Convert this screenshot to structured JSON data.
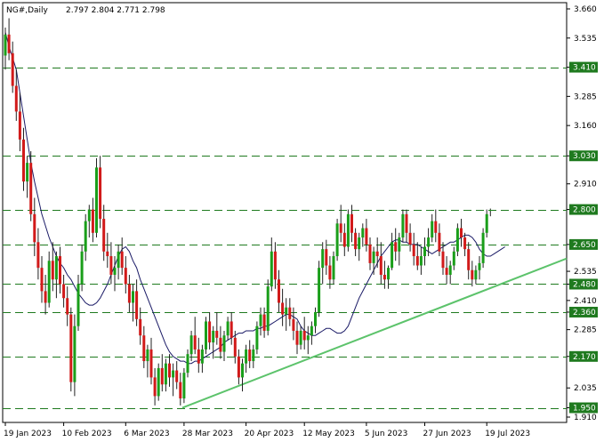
{
  "header": {
    "symbol": "NG#,Daily",
    "ohlc": "2.797 2.804 2.771 2.798"
  },
  "colors": {
    "bull": "#1a9e1a",
    "bear": "#d11a1a",
    "wick": "#222222",
    "level_line": "#1f7a1f",
    "level_box": "#1f7a1f",
    "trendline": "#5cc36b",
    "ma": "#1a1a66",
    "grid": "#000000"
  },
  "chart_data": {
    "type": "candlestick",
    "title": "",
    "symbol": "NG#",
    "timeframe": "Daily",
    "last_ohlc": [
      2.797,
      2.804,
      2.771,
      2.798
    ],
    "ylim": [
      1.91,
      3.66
    ],
    "y_ticks": [
      "3.660",
      "3.535",
      "3.410",
      "3.285",
      "3.160",
      "3.030",
      "2.910",
      "2.800",
      "2.650",
      "2.535",
      "2.480",
      "2.410",
      "2.360",
      "2.285",
      "2.170",
      "2.035",
      "1.950",
      "1.910"
    ],
    "x_ticks": [
      "19 Jan 2023",
      "10 Feb 2023",
      "6 Mar 2023",
      "28 Mar 2023",
      "20 Apr 2023",
      "12 May 2023",
      "5 Jun 2023",
      "27 Jun 2023",
      "19 Jul 2023"
    ],
    "x_tick_index": [
      0,
      16,
      33,
      49,
      66,
      82,
      99,
      115,
      132
    ],
    "levels": [
      3.41,
      3.03,
      2.8,
      2.65,
      2.48,
      2.36,
      2.17,
      1.95
    ],
    "level_labels": [
      "3.410",
      "3.030",
      "2.800",
      "2.650",
      "2.480",
      "2.360",
      "2.170",
      "1.950"
    ],
    "trendline": {
      "from": [
        "28 Mar 2023",
        1.95
      ],
      "to": [
        "end",
        2.59
      ]
    },
    "ma_values": [
      3.56,
      3.5,
      3.45,
      3.4,
      3.3,
      3.2,
      3.1,
      3.0,
      2.92,
      2.85,
      2.78,
      2.73,
      2.68,
      2.64,
      2.6,
      2.57,
      2.55,
      2.52,
      2.5,
      2.47,
      2.44,
      2.42,
      2.4,
      2.39,
      2.39,
      2.4,
      2.42,
      2.45,
      2.48,
      2.52,
      2.56,
      2.6,
      2.63,
      2.64,
      2.62,
      2.58,
      2.55,
      2.5,
      2.46,
      2.42,
      2.38,
      2.34,
      2.3,
      2.26,
      2.22,
      2.19,
      2.17,
      2.16,
      2.15,
      2.15,
      2.14,
      2.14,
      2.15,
      2.15,
      2.16,
      2.17,
      2.18,
      2.19,
      2.2,
      2.21,
      2.23,
      2.24,
      2.25,
      2.26,
      2.27,
      2.27,
      2.28,
      2.28,
      2.28,
      2.29,
      2.29,
      2.3,
      2.3,
      2.31,
      2.32,
      2.33,
      2.34,
      2.35,
      2.35,
      2.34,
      2.33,
      2.3,
      2.28,
      2.27,
      2.26,
      2.26,
      2.27,
      2.28,
      2.29,
      2.29,
      2.28,
      2.27,
      2.27,
      2.28,
      2.3,
      2.34,
      2.38,
      2.42,
      2.45,
      2.48,
      2.51,
      2.54,
      2.57,
      2.6,
      2.62,
      2.64,
      2.66,
      2.67,
      2.67,
      2.66,
      2.66,
      2.65,
      2.65,
      2.65,
      2.64,
      2.63,
      2.62,
      2.61,
      2.62,
      2.63,
      2.64,
      2.65,
      2.66,
      2.66,
      2.67,
      2.68,
      2.69,
      2.69,
      2.68,
      2.66,
      2.63,
      2.61,
      2.6,
      2.6,
      2.61,
      2.62,
      2.63,
      2.64
    ],
    "ohlc": [
      [
        3.46,
        3.58,
        3.4,
        3.55
      ],
      [
        3.55,
        3.62,
        3.44,
        3.47
      ],
      [
        3.47,
        3.52,
        3.3,
        3.33
      ],
      [
        3.33,
        3.4,
        3.18,
        3.22
      ],
      [
        3.22,
        3.3,
        3.05,
        3.1
      ],
      [
        3.1,
        3.15,
        2.88,
        2.92
      ],
      [
        2.92,
        3.03,
        2.85,
        3.0
      ],
      [
        3.0,
        3.05,
        2.75,
        2.78
      ],
      [
        2.78,
        2.85,
        2.6,
        2.66
      ],
      [
        2.66,
        2.72,
        2.5,
        2.55
      ],
      [
        2.55,
        2.6,
        2.4,
        2.45
      ],
      [
        2.45,
        2.52,
        2.35,
        2.4
      ],
      [
        2.4,
        2.62,
        2.38,
        2.58
      ],
      [
        2.58,
        2.66,
        2.45,
        2.5
      ],
      [
        2.5,
        2.62,
        2.42,
        2.6
      ],
      [
        2.6,
        2.64,
        2.44,
        2.48
      ],
      [
        2.48,
        2.52,
        2.38,
        2.42
      ],
      [
        2.42,
        2.47,
        2.3,
        2.35
      ],
      [
        2.35,
        2.38,
        2.02,
        2.06
      ],
      [
        2.06,
        2.35,
        2.0,
        2.3
      ],
      [
        2.3,
        2.52,
        2.28,
        2.48
      ],
      [
        2.48,
        2.65,
        2.45,
        2.62
      ],
      [
        2.62,
        2.78,
        2.58,
        2.75
      ],
      [
        2.75,
        2.82,
        2.68,
        2.8
      ],
      [
        2.8,
        2.85,
        2.66,
        2.7
      ],
      [
        2.7,
        3.02,
        2.68,
        2.98
      ],
      [
        2.98,
        3.03,
        2.72,
        2.76
      ],
      [
        2.76,
        2.82,
        2.58,
        2.62
      ],
      [
        2.62,
        2.7,
        2.55,
        2.6
      ],
      [
        2.6,
        2.66,
        2.48,
        2.52
      ],
      [
        2.52,
        2.6,
        2.45,
        2.55
      ],
      [
        2.55,
        2.65,
        2.5,
        2.62
      ],
      [
        2.62,
        2.68,
        2.52,
        2.55
      ],
      [
        2.55,
        2.6,
        2.44,
        2.48
      ],
      [
        2.48,
        2.52,
        2.36,
        2.4
      ],
      [
        2.4,
        2.48,
        2.32,
        2.45
      ],
      [
        2.45,
        2.5,
        2.3,
        2.33
      ],
      [
        2.33,
        2.38,
        2.22,
        2.26
      ],
      [
        2.26,
        2.3,
        2.12,
        2.15
      ],
      [
        2.15,
        2.22,
        2.08,
        2.2
      ],
      [
        2.2,
        2.25,
        2.05,
        2.08
      ],
      [
        2.08,
        2.12,
        1.96,
        2.0
      ],
      [
        2.0,
        2.14,
        1.98,
        2.12
      ],
      [
        2.12,
        2.18,
        2.02,
        2.05
      ],
      [
        2.05,
        2.16,
        2.02,
        2.14
      ],
      [
        2.14,
        2.18,
        2.04,
        2.08
      ],
      [
        2.08,
        2.14,
        2.0,
        2.11
      ],
      [
        2.11,
        2.15,
        2.03,
        2.06
      ],
      [
        2.06,
        2.1,
        1.96,
        1.99
      ],
      [
        1.99,
        2.12,
        1.97,
        2.1
      ],
      [
        2.1,
        2.2,
        2.08,
        2.18
      ],
      [
        2.18,
        2.28,
        2.15,
        2.26
      ],
      [
        2.26,
        2.34,
        2.18,
        2.2
      ],
      [
        2.2,
        2.25,
        2.1,
        2.14
      ],
      [
        2.14,
        2.22,
        2.1,
        2.2
      ],
      [
        2.2,
        2.34,
        2.18,
        2.32
      ],
      [
        2.32,
        2.36,
        2.2,
        2.23
      ],
      [
        2.23,
        2.3,
        2.16,
        2.28
      ],
      [
        2.28,
        2.36,
        2.22,
        2.25
      ],
      [
        2.25,
        2.3,
        2.16,
        2.19
      ],
      [
        2.19,
        2.28,
        2.15,
        2.26
      ],
      [
        2.26,
        2.34,
        2.24,
        2.32
      ],
      [
        2.32,
        2.36,
        2.22,
        2.25
      ],
      [
        2.25,
        2.28,
        2.14,
        2.17
      ],
      [
        2.17,
        2.2,
        2.05,
        2.08
      ],
      [
        2.08,
        2.16,
        2.02,
        2.14
      ],
      [
        2.14,
        2.22,
        2.1,
        2.2
      ],
      [
        2.2,
        2.24,
        2.12,
        2.15
      ],
      [
        2.15,
        2.22,
        2.12,
        2.2
      ],
      [
        2.2,
        2.32,
        2.18,
        2.3
      ],
      [
        2.3,
        2.38,
        2.26,
        2.35
      ],
      [
        2.35,
        2.38,
        2.25,
        2.28
      ],
      [
        2.28,
        2.5,
        2.26,
        2.47
      ],
      [
        2.47,
        2.68,
        2.45,
        2.62
      ],
      [
        2.62,
        2.66,
        2.46,
        2.5
      ],
      [
        2.5,
        2.54,
        2.36,
        2.4
      ],
      [
        2.4,
        2.46,
        2.3,
        2.35
      ],
      [
        2.35,
        2.42,
        2.28,
        2.38
      ],
      [
        2.38,
        2.42,
        2.3,
        2.33
      ],
      [
        2.33,
        2.38,
        2.24,
        2.28
      ],
      [
        2.28,
        2.32,
        2.18,
        2.22
      ],
      [
        2.22,
        2.3,
        2.2,
        2.28
      ],
      [
        2.28,
        2.34,
        2.2,
        2.24
      ],
      [
        2.24,
        2.3,
        2.18,
        2.26
      ],
      [
        2.26,
        2.32,
        2.22,
        2.3
      ],
      [
        2.3,
        2.38,
        2.27,
        2.36
      ],
      [
        2.36,
        2.58,
        2.34,
        2.55
      ],
      [
        2.55,
        2.66,
        2.48,
        2.63
      ],
      [
        2.63,
        2.67,
        2.52,
        2.56
      ],
      [
        2.56,
        2.6,
        2.46,
        2.5
      ],
      [
        2.5,
        2.62,
        2.48,
        2.6
      ],
      [
        2.6,
        2.76,
        2.58,
        2.74
      ],
      [
        2.74,
        2.82,
        2.66,
        2.7
      ],
      [
        2.7,
        2.74,
        2.6,
        2.64
      ],
      [
        2.64,
        2.8,
        2.62,
        2.78
      ],
      [
        2.78,
        2.82,
        2.66,
        2.7
      ],
      [
        2.7,
        2.72,
        2.6,
        2.63
      ],
      [
        2.63,
        2.7,
        2.58,
        2.68
      ],
      [
        2.68,
        2.74,
        2.64,
        2.72
      ],
      [
        2.72,
        2.76,
        2.62,
        2.65
      ],
      [
        2.65,
        2.68,
        2.54,
        2.57
      ],
      [
        2.57,
        2.64,
        2.52,
        2.62
      ],
      [
        2.62,
        2.68,
        2.55,
        2.6
      ],
      [
        2.6,
        2.66,
        2.48,
        2.52
      ],
      [
        2.52,
        2.58,
        2.46,
        2.5
      ],
      [
        2.5,
        2.56,
        2.46,
        2.55
      ],
      [
        2.55,
        2.7,
        2.54,
        2.66
      ],
      [
        2.66,
        2.72,
        2.58,
        2.62
      ],
      [
        2.62,
        2.7,
        2.56,
        2.68
      ],
      [
        2.68,
        2.8,
        2.66,
        2.78
      ],
      [
        2.78,
        2.8,
        2.66,
        2.7
      ],
      [
        2.7,
        2.74,
        2.62,
        2.65
      ],
      [
        2.65,
        2.7,
        2.56,
        2.6
      ],
      [
        2.6,
        2.66,
        2.54,
        2.56
      ],
      [
        2.56,
        2.64,
        2.52,
        2.6
      ],
      [
        2.6,
        2.68,
        2.56,
        2.64
      ],
      [
        2.64,
        2.72,
        2.6,
        2.68
      ],
      [
        2.68,
        2.78,
        2.66,
        2.75
      ],
      [
        2.75,
        2.8,
        2.66,
        2.7
      ],
      [
        2.7,
        2.74,
        2.6,
        2.62
      ],
      [
        2.62,
        2.66,
        2.52,
        2.55
      ],
      [
        2.55,
        2.6,
        2.48,
        2.52
      ],
      [
        2.52,
        2.58,
        2.48,
        2.56
      ],
      [
        2.56,
        2.64,
        2.54,
        2.62
      ],
      [
        2.62,
        2.74,
        2.6,
        2.72
      ],
      [
        2.72,
        2.76,
        2.64,
        2.68
      ],
      [
        2.68,
        2.7,
        2.6,
        2.63
      ],
      [
        2.63,
        2.66,
        2.5,
        2.54
      ],
      [
        2.54,
        2.58,
        2.47,
        2.5
      ],
      [
        2.5,
        2.56,
        2.48,
        2.54
      ],
      [
        2.54,
        2.6,
        2.5,
        2.57
      ],
      [
        2.57,
        2.72,
        2.55,
        2.7
      ],
      [
        2.7,
        2.8,
        2.68,
        2.78
      ],
      [
        2.797,
        2.804,
        2.771,
        2.798
      ]
    ]
  }
}
